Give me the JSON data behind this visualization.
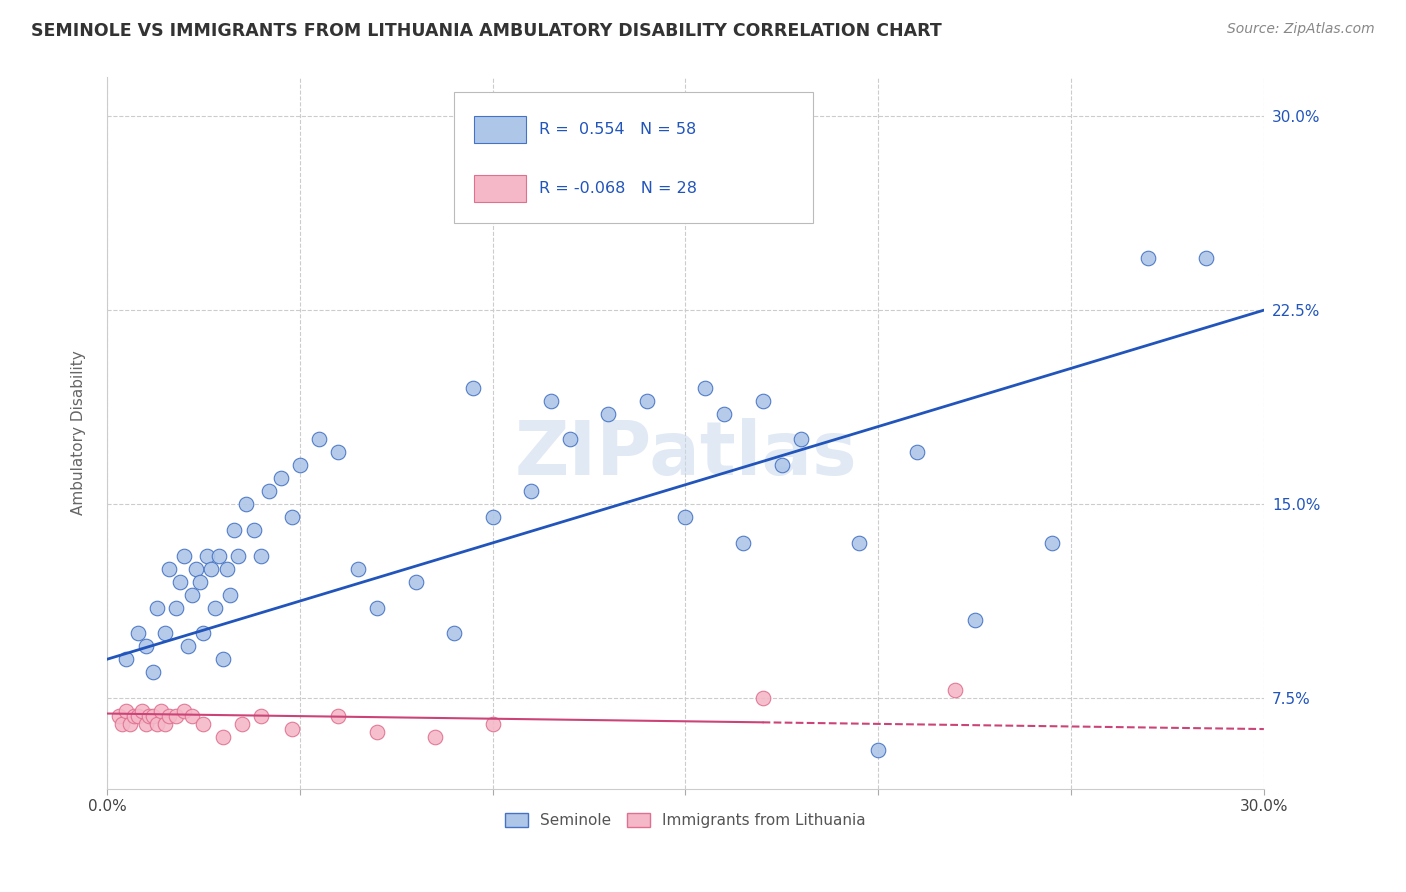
{
  "title": "SEMINOLE VS IMMIGRANTS FROM LITHUANIA AMBULATORY DISABILITY CORRELATION CHART",
  "source": "Source: ZipAtlas.com",
  "ylabel": "Ambulatory Disability",
  "xlim": [
    0.0,
    0.3
  ],
  "ylim": [
    0.04,
    0.315
  ],
  "yticks": [
    0.075,
    0.15,
    0.225,
    0.3
  ],
  "ytick_labels": [
    "7.5%",
    "15.0%",
    "22.5%",
    "30.0%"
  ],
  "xticks": [
    0.0,
    0.05,
    0.1,
    0.15,
    0.2,
    0.25,
    0.3
  ],
  "seminole_R": 0.554,
  "seminole_N": 58,
  "lithuania_R": -0.068,
  "lithuania_N": 28,
  "seminole_color": "#aec6e8",
  "seminole_edge_color": "#4472c4",
  "seminole_line_color": "#2255bb",
  "lithuania_color": "#f4b8c8",
  "lithuania_edge_color": "#e07090",
  "lithuania_line_color": "#cc4477",
  "watermark": "ZIPatlas",
  "background_color": "#ffffff",
  "grid_color": "#cccccc",
  "seminole_x": [
    0.005,
    0.008,
    0.01,
    0.012,
    0.013,
    0.015,
    0.016,
    0.018,
    0.019,
    0.02,
    0.021,
    0.022,
    0.023,
    0.024,
    0.025,
    0.026,
    0.027,
    0.028,
    0.029,
    0.03,
    0.031,
    0.032,
    0.033,
    0.034,
    0.036,
    0.038,
    0.04,
    0.042,
    0.045,
    0.048,
    0.05,
    0.055,
    0.06,
    0.065,
    0.07,
    0.08,
    0.09,
    0.095,
    0.1,
    0.11,
    0.115,
    0.12,
    0.13,
    0.14,
    0.15,
    0.155,
    0.16,
    0.165,
    0.17,
    0.175,
    0.18,
    0.195,
    0.2,
    0.21,
    0.225,
    0.245,
    0.27,
    0.285
  ],
  "seminole_y": [
    0.09,
    0.1,
    0.095,
    0.085,
    0.11,
    0.1,
    0.125,
    0.11,
    0.12,
    0.13,
    0.095,
    0.115,
    0.125,
    0.12,
    0.1,
    0.13,
    0.125,
    0.11,
    0.13,
    0.09,
    0.125,
    0.115,
    0.14,
    0.13,
    0.15,
    0.14,
    0.13,
    0.155,
    0.16,
    0.145,
    0.165,
    0.175,
    0.17,
    0.125,
    0.11,
    0.12,
    0.1,
    0.195,
    0.145,
    0.155,
    0.19,
    0.175,
    0.185,
    0.19,
    0.145,
    0.195,
    0.185,
    0.135,
    0.19,
    0.165,
    0.175,
    0.135,
    0.055,
    0.17,
    0.105,
    0.135,
    0.245,
    0.245
  ],
  "lithuania_x": [
    0.003,
    0.004,
    0.005,
    0.006,
    0.007,
    0.008,
    0.009,
    0.01,
    0.011,
    0.012,
    0.013,
    0.014,
    0.015,
    0.016,
    0.018,
    0.02,
    0.022,
    0.025,
    0.03,
    0.035,
    0.04,
    0.048,
    0.06,
    0.07,
    0.085,
    0.1,
    0.17,
    0.22
  ],
  "lithuania_y": [
    0.068,
    0.065,
    0.07,
    0.065,
    0.068,
    0.068,
    0.07,
    0.065,
    0.068,
    0.068,
    0.065,
    0.07,
    0.065,
    0.068,
    0.068,
    0.07,
    0.068,
    0.065,
    0.06,
    0.065,
    0.068,
    0.063,
    0.068,
    0.062,
    0.06,
    0.065,
    0.075,
    0.078
  ],
  "sem_line_x0": 0.0,
  "sem_line_y0": 0.09,
  "sem_line_x1": 0.3,
  "sem_line_y1": 0.225,
  "lit_line_x0": 0.0,
  "lit_line_y0": 0.069,
  "lit_line_x1": 0.3,
  "lit_line_y1": 0.063
}
